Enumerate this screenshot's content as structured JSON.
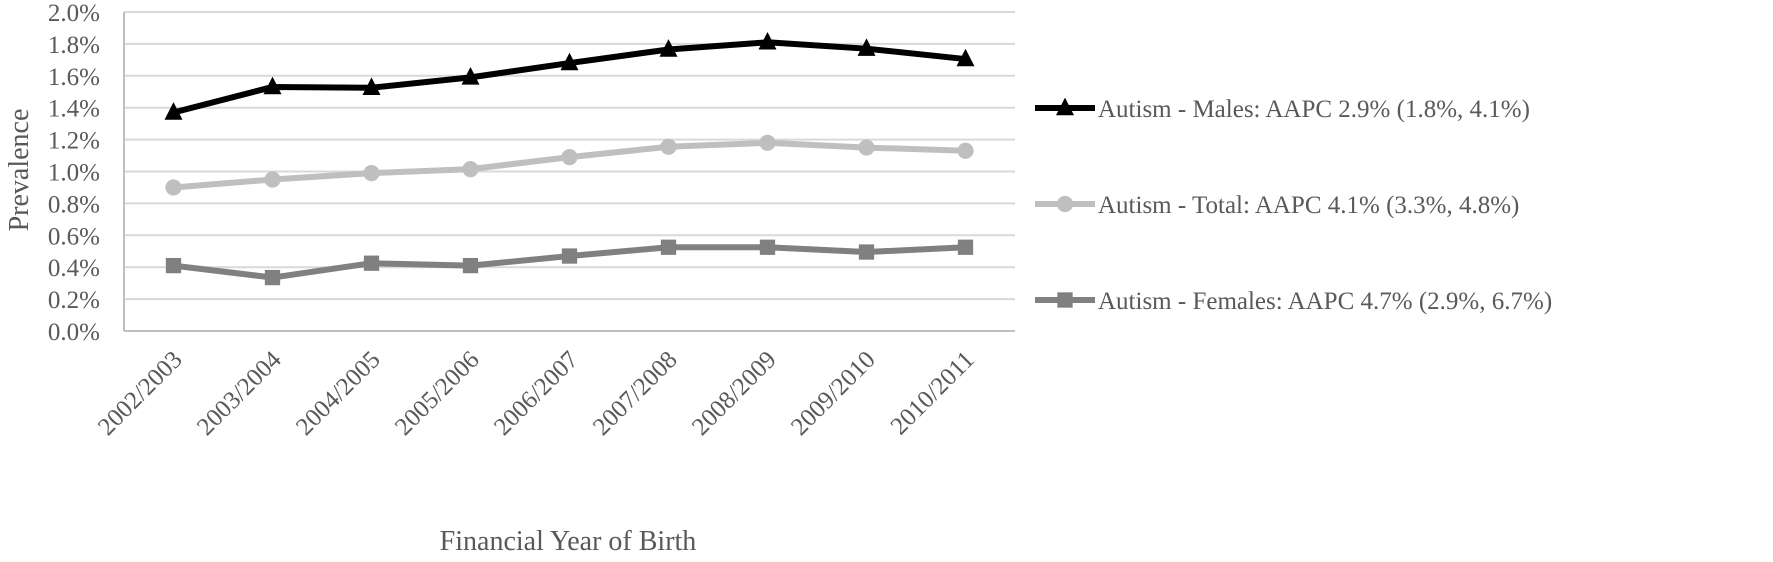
{
  "chart_data": {
    "type": "line",
    "xlabel": "Financial Year of Birth",
    "ylabel": "Prevalence",
    "ylim": [
      0,
      2.0
    ],
    "yticks": [
      "0.0%",
      "0.2%",
      "0.4%",
      "0.6%",
      "0.8%",
      "1.0%",
      "1.2%",
      "1.4%",
      "1.6%",
      "1.8%",
      "2.0%"
    ],
    "categories": [
      "2002/2003",
      "2003/2004",
      "2004/2005",
      "2005/2006",
      "2006/2007",
      "2007/2008",
      "2008/2009",
      "2009/2010",
      "2010/2011"
    ],
    "grid": true,
    "legend_position": "right",
    "series": [
      {
        "name": "Autism - Males: AAPC 2.9% (1.8%, 4.1%)",
        "marker": "triangle",
        "color": "#000000",
        "values": [
          1.37,
          1.53,
          1.525,
          1.59,
          1.68,
          1.765,
          1.81,
          1.77,
          1.705
        ]
      },
      {
        "name": "Autism - Total: AAPC 4.1% (3.3%, 4.8%)",
        "marker": "circle",
        "color": "#bfbfbf",
        "values": [
          0.9,
          0.95,
          0.99,
          1.015,
          1.09,
          1.155,
          1.18,
          1.15,
          1.13
        ]
      },
      {
        "name": "Autism - Females: AAPC 4.7% (2.9%, 6.7%)",
        "marker": "square",
        "color": "#808080",
        "values": [
          0.41,
          0.335,
          0.425,
          0.41,
          0.47,
          0.525,
          0.525,
          0.495,
          0.525
        ]
      }
    ]
  }
}
